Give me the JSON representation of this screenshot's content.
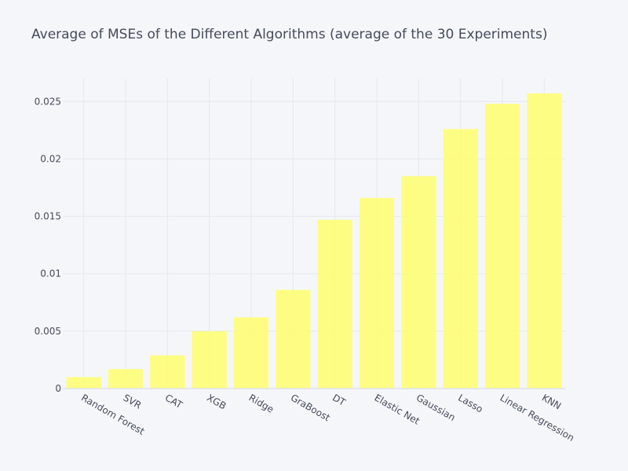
{
  "chart_data": {
    "type": "bar",
    "title": "Average of MSEs of the Different Algorithms (average of the 30 Experiments)",
    "xlabel": "",
    "ylabel": "",
    "categories": [
      "Random Forest",
      "SVR",
      "CAT",
      "XGB",
      "Ridge",
      "GraBoost",
      "DT",
      "Elastic Net",
      "Gaussian",
      "Lasso",
      "Linear Regression",
      "KNN"
    ],
    "values": [
      0.001,
      0.0017,
      0.0029,
      0.005,
      0.0062,
      0.0086,
      0.0147,
      0.0166,
      0.0185,
      0.0226,
      0.0248,
      0.0257
    ],
    "ylim": [
      0,
      0.027
    ],
    "yticks": [
      0,
      0.005,
      0.01,
      0.015,
      0.02,
      0.025
    ],
    "ytick_labels": [
      "0",
      "0.005",
      "0.01",
      "0.015",
      "0.02",
      "0.025"
    ],
    "grid": true,
    "bar_color": "#ffff66",
    "bar_opacity": 0.8
  }
}
